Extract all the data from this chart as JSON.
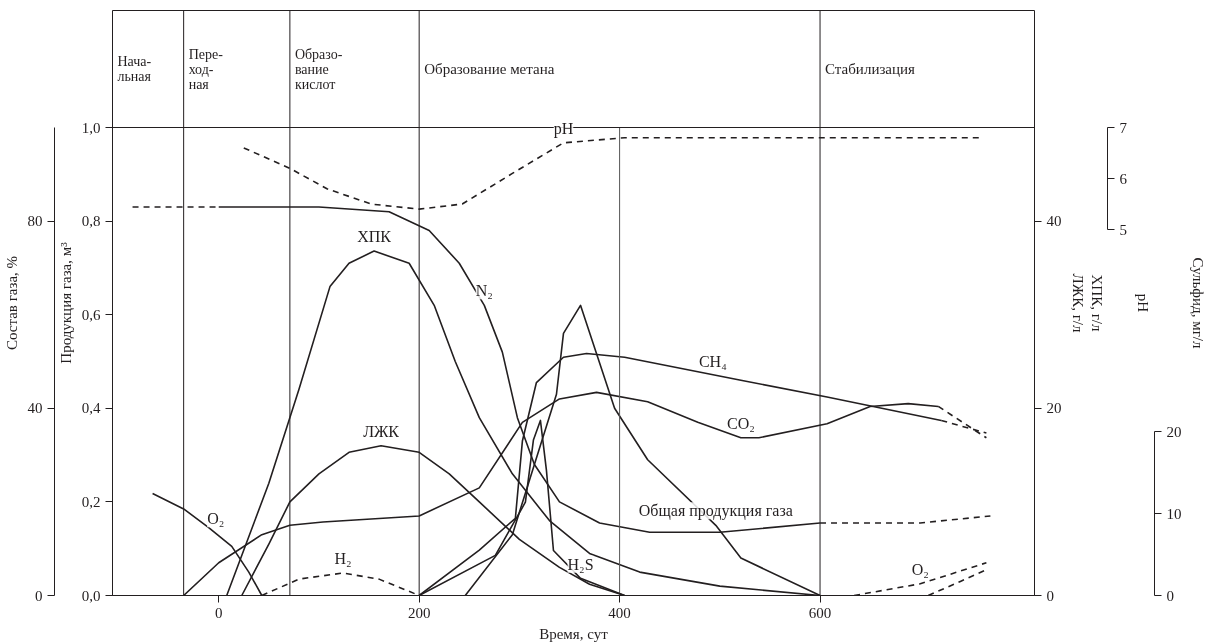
{
  "chart_data": [
    {
      "type": "line",
      "xlabel": "Время, сут",
      "ylabel": "Продукция газа, м³",
      "y2label": "Состав газа, %",
      "y3label": "ХПК, г/л\nЛЖК, г/л",
      "xlim": [
        -106,
        814
      ],
      "xticks": [
        0,
        200,
        400,
        600
      ],
      "ylim": [
        0,
        1.0
      ],
      "yticks": [
        {
          "value": 0,
          "label": "0,0"
        },
        {
          "value": 0.2,
          "label": "0,2"
        },
        {
          "value": 0.4,
          "label": "0,4"
        },
        {
          "value": 0.6,
          "label": "0,6"
        },
        {
          "value": 0.8,
          "label": "0,8"
        },
        {
          "value": 1.0,
          "label": "1,0"
        }
      ],
      "y2lim": [
        0,
        100
      ],
      "y2ticks": [
        0,
        40,
        80
      ],
      "y3lim": [
        0,
        50
      ],
      "y3ticks": [
        0,
        20,
        40
      ],
      "grid": false,
      "ref_lines": [
        {
          "axis": "x",
          "value": -106,
          "label": "Нача-\nльная"
        },
        {
          "axis": "x",
          "value": -35,
          "label": "Пере-\nход-\nная"
        },
        {
          "axis": "x",
          "value": 71,
          "label": "Образо-\nвание\nкислот"
        },
        {
          "axis": "x",
          "value": 200,
          "label": "Образование метана"
        },
        {
          "axis": "x",
          "value": 600,
          "label": "Стабилизация"
        },
        {
          "axis": "x",
          "value": 400,
          "label": null,
          "color": "#555555"
        }
      ],
      "series": [
        {
          "color": "#231f20",
          "axis": "y2",
          "line_style": "dashed",
          "x": [
            -86,
            0
          ],
          "values": [
            83,
            83
          ]
        },
        {
          "color": "#231f20",
          "axis": "y2",
          "line_style": "solid",
          "x": [
            0,
            100,
            170,
            210,
            240,
            265,
            283,
            298,
            315,
            340,
            380,
            430,
            500,
            600
          ],
          "values": [
            83,
            83,
            82,
            78,
            71,
            62,
            52,
            38,
            28,
            20,
            15.5,
            13.5,
            13.5,
            15.5
          ]
        },
        {
          "color": "#231f20",
          "axis": "y2",
          "line_style": "dashed",
          "x": [
            600,
            700,
            770
          ],
          "values": [
            15.5,
            15.5,
            17
          ]
        },
        {
          "color": "#231f20",
          "axis": "y3",
          "line_style": "solid",
          "x": [
            8,
            50,
            80,
            111,
            130,
            155,
            190,
            215,
            236,
            260,
            293,
            330,
            370,
            420,
            500,
            600
          ],
          "values": [
            0,
            12,
            22,
            33,
            35.5,
            36.8,
            35.5,
            31,
            25,
            19,
            13,
            8,
            4.5,
            2.5,
            1,
            0
          ]
        },
        {
          "color": "#231f20",
          "axis": "y3",
          "line_style": "solid",
          "x": [
            23,
            50,
            71,
            100,
            130,
            162,
            200,
            230,
            260,
            300,
            340,
            370,
            405
          ],
          "values": [
            0,
            5.5,
            10,
            13,
            15.3,
            16,
            15.3,
            13,
            10,
            6,
            3,
            1.2,
            0
          ]
        },
        {
          "color": "#231f20",
          "axis": "y2",
          "line_style": "solid",
          "x": [
            -66,
            -35,
            -10,
            13,
            30,
            43
          ],
          "values": [
            21.8,
            18.5,
            14.5,
            10.5,
            5,
            0
          ]
        },
        {
          "color": "#231f20",
          "axis": "y2",
          "line_style": "dashed",
          "x": [
            634,
            700,
            766
          ],
          "values": [
            0,
            2.5,
            7
          ]
        },
        {
          "color": "#231f20",
          "axis": "y2",
          "line_style": "dashed",
          "x": [
            708,
            740,
            766
          ],
          "values": [
            0,
            3,
            5.5
          ]
        },
        {
          "color": "#231f20",
          "axis": "y2",
          "line_style": "dashed",
          "x": [
            43,
            80,
            124,
            160,
            200
          ],
          "values": [
            0,
            3.5,
            4.8,
            3.5,
            0
          ]
        },
        {
          "color": "#231f20",
          "axis": "y2",
          "line_style": "solid",
          "x": [
            -35,
            0,
            43,
            71,
            104,
            200,
            260,
            303,
            340,
            377,
            428,
            478,
            521,
            539,
            607,
            650,
            688,
            718
          ],
          "values": [
            0,
            7,
            13,
            15,
            15.7,
            17,
            23,
            37,
            42,
            43.4,
            41.4,
            37,
            33.7,
            33.7,
            36.7,
            40.4,
            41,
            40.4
          ]
        },
        {
          "color": "#231f20",
          "axis": "y2",
          "line_style": "dashed",
          "x": [
            718,
            766
          ],
          "values": [
            40.4,
            33.7
          ]
        },
        {
          "color": "#231f20",
          "axis": "y2",
          "line_style": "solid",
          "x": [
            200,
            260,
            296,
            303,
            317,
            344,
            367,
            405,
            521,
            607,
            721
          ],
          "values": [
            0,
            9.7,
            16.5,
            33,
            45.5,
            50.9,
            51.7,
            50.9,
            46,
            42.4,
            37.4
          ]
        },
        {
          "color": "#231f20",
          "axis": "y2",
          "line_style": "dashed",
          "x": [
            721,
            766
          ],
          "values": [
            37.4,
            34.7
          ]
        },
        {
          "color": "#231f20",
          "line_style": "solid",
          "x": [
            246,
            293,
            337,
            344,
            361,
            395,
            428,
            496,
            521,
            600
          ],
          "values": [
            0,
            0.13,
            0.43,
            0.56,
            0.62,
            0.4,
            0.29,
            0.15,
            0.08,
            0
          ]
        }
      ],
      "annotations": [
        {
          "text": "ХПК",
          "x": 155,
          "y": 0.736
        },
        {
          "text": "ЛЖК",
          "x": 162,
          "y": 0.32
        },
        {
          "text": "O₂",
          "x": -3,
          "y": 0.133
        },
        {
          "text": "H₂",
          "x": 124,
          "y": 0.048
        },
        {
          "text": "N₂",
          "x": 265,
          "y": 0.62
        },
        {
          "text": "CH₄",
          "x": 493,
          "y": 0.47
        },
        {
          "text": "CO₂",
          "x": 521,
          "y": 0.337
        },
        {
          "text": "Общая продукция газа",
          "x": 496,
          "y": 0.15
        },
        {
          "text": "O₂",
          "x": 700,
          "y": 0.025
        }
      ]
    },
    {
      "type": "line",
      "tick_labels": "y",
      "ylabel": "pH",
      "y2label": "Сульфид, мг/л",
      "xlim": [
        -106,
        814
      ],
      "ylim": [
        -2.17,
        7
      ],
      "yticks": [
        5,
        6,
        7
      ],
      "y2lim": [
        0,
        57.2
      ],
      "y2ticks": [
        0,
        10,
        20
      ],
      "series": [
        {
          "color": "#231f20",
          "axis": "y2",
          "line_style": "solid",
          "x": [
            200,
            276,
            306,
            314,
            321,
            327,
            334,
            361,
            405
          ],
          "values": [
            0,
            4.9,
            11.4,
            19,
            21.4,
            15.3,
            5.5,
            2.1,
            0
          ]
        },
        {
          "color": "#231f20",
          "line_style": "dashed",
          "x": [
            25,
            71,
            108,
            152,
            200,
            243,
            293,
            344,
            405,
            759
          ],
          "values": [
            6.6,
            6.2,
            5.8,
            5.5,
            5.4,
            5.5,
            6.1,
            6.7,
            6.8,
            6.8
          ]
        }
      ],
      "annotations": [
        {
          "text": "pH",
          "x": 344,
          "y": 6.7
        },
        {
          "text": "H₂S",
          "x": 361,
          "y": -1.84
        }
      ]
    }
  ]
}
